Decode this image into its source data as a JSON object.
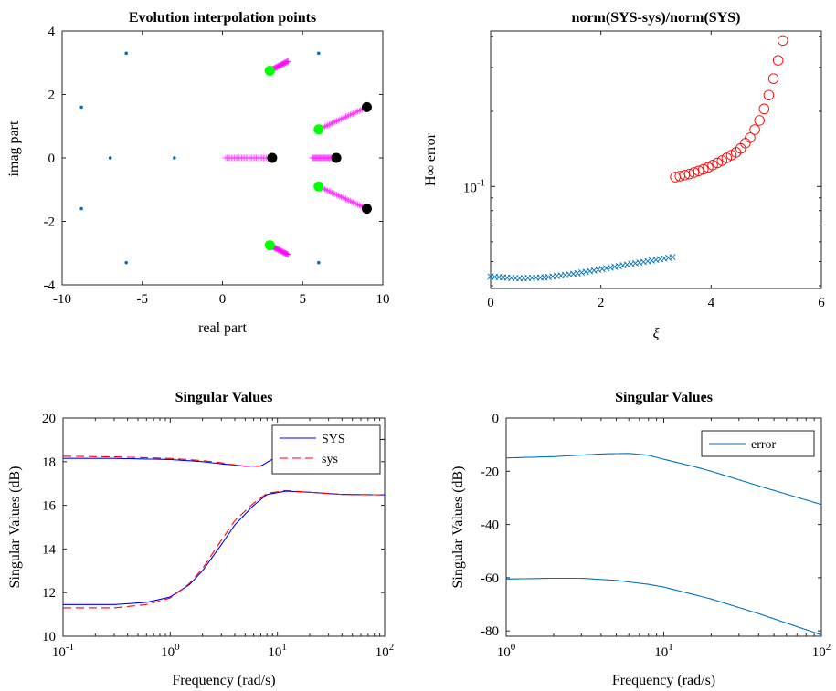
{
  "chart_data": [
    {
      "id": "tl",
      "type": "scatter",
      "title": "Evolution interpolation points",
      "xlabel": "real part",
      "ylabel": "imag part",
      "xlim": [
        -10,
        10
      ],
      "ylim": [
        -4,
        4
      ],
      "xticks": [
        -10,
        -5,
        0,
        5,
        10
      ],
      "yticks": [
        -4,
        -2,
        0,
        2,
        4
      ],
      "xtick_labels": [
        "-10",
        "-5",
        "0",
        "5",
        "10"
      ],
      "ytick_labels": [
        "-4",
        "-2",
        "0",
        "2",
        "4"
      ],
      "grid": false,
      "colors": {
        "dots": "#0072BD",
        "trail": "#FF00FF",
        "start": "#00FF00",
        "end": "#000000"
      },
      "series": [
        {
          "role": "mirrored interpolation points",
          "marker": "dot",
          "points": [
            [
              -8.8,
              1.6
            ],
            [
              -8.8,
              -1.6
            ],
            [
              -7.0,
              0.0
            ],
            [
              -6.0,
              3.3
            ],
            [
              -6.0,
              -3.3
            ],
            [
              -3.0,
              0.0
            ],
            [
              6.0,
              3.3
            ],
            [
              6.0,
              -3.3
            ]
          ]
        },
        {
          "role": "trajectories",
          "marker": "plus",
          "paths": [
            {
              "from": [
                2.95,
                2.75
              ],
              "to": [
                4.1,
                3.05
              ]
            },
            {
              "from": [
                2.95,
                -2.75
              ],
              "to": [
                4.1,
                -3.05
              ]
            },
            {
              "from": [
                6.0,
                0.9
              ],
              "to": [
                9.0,
                1.6
              ]
            },
            {
              "from": [
                6.0,
                -0.9
              ],
              "to": [
                9.0,
                -1.6
              ]
            },
            {
              "from": [
                0.2,
                0.0
              ],
              "to": [
                3.1,
                0.0
              ]
            },
            {
              "from": [
                5.6,
                0.0
              ],
              "to": [
                7.1,
                0.0
              ]
            }
          ]
        },
        {
          "role": "start points",
          "marker": "filled circle",
          "points": [
            [
              2.95,
              2.75
            ],
            [
              2.95,
              -2.75
            ],
            [
              6.0,
              0.9
            ],
            [
              6.0,
              -0.9
            ]
          ]
        },
        {
          "role": "end points",
          "marker": "filled circle",
          "points": [
            [
              3.1,
              0.0
            ],
            [
              7.1,
              0.0
            ],
            [
              9.0,
              1.6
            ],
            [
              9.0,
              -1.6
            ]
          ]
        }
      ]
    },
    {
      "id": "tr",
      "type": "scatter",
      "title": "norm(SYS-sys)/norm(SYS)",
      "xlabel": "ξ",
      "ylabel": "H∞ error",
      "xlim": [
        0,
        6
      ],
      "yscale": "log",
      "ylim": [
        0.039,
        0.42
      ],
      "xticks": [
        0,
        2,
        4,
        6
      ],
      "xtick_labels": [
        "0",
        "2",
        "4",
        "6"
      ],
      "ytick_label": {
        "base": "10",
        "exp": "-1",
        "value": 0.1
      },
      "grid": false,
      "colors": {
        "cross": "#0072BD",
        "circle": "#FF0000"
      },
      "series": [
        {
          "marker": "x",
          "x_start": 0.0,
          "x_end": 3.3,
          "count": 45,
          "curve": [
            [
              0.0,
              0.0435
            ],
            [
              0.5,
              0.0428
            ],
            [
              1.0,
              0.0432
            ],
            [
              1.5,
              0.0446
            ],
            [
              2.0,
              0.0466
            ],
            [
              2.5,
              0.0487
            ],
            [
              3.0,
              0.0508
            ],
            [
              3.3,
              0.0521
            ]
          ]
        },
        {
          "marker": "o",
          "x_start": 3.35,
          "x_end": 5.3,
          "count": 24,
          "curve": [
            [
              3.35,
              0.109
            ],
            [
              3.6,
              0.112
            ],
            [
              3.9,
              0.118
            ],
            [
              4.2,
              0.127
            ],
            [
              4.5,
              0.139
            ],
            [
              4.7,
              0.156
            ],
            [
              4.85,
              0.178
            ],
            [
              5.0,
              0.215
            ],
            [
              5.1,
              0.255
            ],
            [
              5.2,
              0.31
            ],
            [
              5.3,
              0.385
            ]
          ]
        }
      ]
    },
    {
      "id": "bl",
      "type": "line",
      "title": "Singular Values",
      "xlabel": "Frequency (rad/s)",
      "ylabel": "Singular Values (dB)",
      "xscale": "log",
      "xlim": [
        0.1,
        100
      ],
      "ylim": [
        10,
        20
      ],
      "yticks": [
        10,
        12,
        14,
        16,
        18,
        20
      ],
      "ytick_labels": [
        "10",
        "12",
        "14",
        "16",
        "18",
        "20"
      ],
      "xtick_labels": [
        {
          "value": 0.1,
          "base": "10",
          "exp": "-1"
        },
        {
          "value": 1,
          "base": "10",
          "exp": "0"
        },
        {
          "value": 10,
          "base": "10",
          "exp": "1"
        },
        {
          "value": 100,
          "base": "10",
          "exp": "2"
        }
      ],
      "grid": false,
      "legend": {
        "position": "top-right",
        "entries": [
          "SYS",
          "sys"
        ]
      },
      "series": [
        {
          "name": "SYS",
          "color": "#0000FF",
          "dash": "solid",
          "curves": [
            [
              [
                0.1,
                18.15
              ],
              [
                0.3,
                18.15
              ],
              [
                1.0,
                18.1
              ],
              [
                2.0,
                18.0
              ],
              [
                3.0,
                17.9
              ],
              [
                5.0,
                17.8
              ],
              [
                7.0,
                17.8
              ],
              [
                10.0,
                18.25
              ],
              [
                15.0,
                18.75
              ],
              [
                30.0,
                19.0
              ],
              [
                100.0,
                19.02
              ]
            ],
            [
              [
                0.1,
                11.45
              ],
              [
                0.3,
                11.45
              ],
              [
                0.6,
                11.55
              ],
              [
                1.0,
                11.8
              ],
              [
                1.5,
                12.35
              ],
              [
                2.0,
                13.0
              ],
              [
                3.0,
                14.2
              ],
              [
                4.0,
                15.1
              ],
              [
                6.0,
                16.0
              ],
              [
                8.0,
                16.5
              ],
              [
                12.0,
                16.65
              ],
              [
                20.0,
                16.6
              ],
              [
                40.0,
                16.5
              ],
              [
                100.0,
                16.48
              ]
            ]
          ]
        },
        {
          "name": "sys",
          "color": "#FF0000",
          "dash": "dashed",
          "curves": [
            [
              [
                0.1,
                18.25
              ],
              [
                0.3,
                18.22
              ],
              [
                1.0,
                18.15
              ],
              [
                2.0,
                18.05
              ],
              [
                3.0,
                17.95
              ],
              [
                5.0,
                17.78
              ],
              [
                7.0,
                17.8
              ]
            ],
            [
              [
                0.1,
                11.3
              ],
              [
                0.3,
                11.3
              ],
              [
                0.6,
                11.45
              ],
              [
                1.0,
                11.75
              ],
              [
                1.5,
                12.4
              ],
              [
                2.0,
                13.1
              ],
              [
                3.0,
                14.4
              ],
              [
                4.0,
                15.3
              ],
              [
                6.0,
                16.1
              ],
              [
                8.0,
                16.55
              ],
              [
                12.0,
                16.68
              ],
              [
                20.0,
                16.6
              ],
              [
                40.0,
                16.5
              ],
              [
                100.0,
                16.48
              ]
            ]
          ]
        }
      ]
    },
    {
      "id": "br",
      "type": "line",
      "title": "Singular Values",
      "xlabel": "Frequency (rad/s)",
      "ylabel": "Singular Values (dB)",
      "xscale": "log",
      "xlim": [
        1,
        100
      ],
      "ylim": [
        -82,
        0
      ],
      "yticks": [
        -80,
        -60,
        -40,
        -20,
        0
      ],
      "ytick_labels": [
        "-80",
        "-60",
        "-40",
        "-20",
        "0"
      ],
      "xtick_labels": [
        {
          "value": 1,
          "base": "10",
          "exp": "0"
        },
        {
          "value": 10,
          "base": "10",
          "exp": "1"
        },
        {
          "value": 100,
          "base": "10",
          "exp": "2"
        }
      ],
      "grid": false,
      "legend": {
        "position": "top-right",
        "entries": [
          "error"
        ]
      },
      "series": [
        {
          "name": "error",
          "color": "#0072BD",
          "dash": "solid",
          "curves": [
            [
              [
                1.0,
                -15.0
              ],
              [
                2.0,
                -14.5
              ],
              [
                4.0,
                -13.5
              ],
              [
                6.0,
                -13.3
              ],
              [
                8.0,
                -14.0
              ],
              [
                10.0,
                -15.5
              ],
              [
                15.0,
                -18.0
              ],
              [
                20.0,
                -20.0
              ],
              [
                40.0,
                -25.5
              ],
              [
                100.0,
                -32.5
              ]
            ],
            [
              [
                1.0,
                -60.5
              ],
              [
                2.0,
                -60.2
              ],
              [
                3.0,
                -60.2
              ],
              [
                5.0,
                -61.0
              ],
              [
                8.0,
                -62.5
              ],
              [
                10.0,
                -63.5
              ],
              [
                20.0,
                -68.0
              ],
              [
                40.0,
                -73.5
              ],
              [
                100.0,
                -81.5
              ]
            ]
          ]
        }
      ]
    }
  ]
}
